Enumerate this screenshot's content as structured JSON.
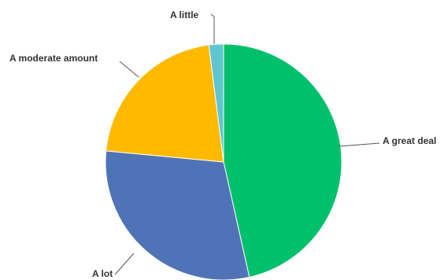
{
  "chart_data": {
    "type": "pie",
    "title": "",
    "slices": [
      {
        "label": "A great deal",
        "value": 46.5,
        "color": "#00C06B"
      },
      {
        "label": "A lot",
        "value": 30.0,
        "color": "#4F73B6"
      },
      {
        "label": "A moderate amount",
        "value": 21.5,
        "color": "#FFBA00"
      },
      {
        "label": "A little",
        "value": 2.0,
        "color": "#5FC6D0"
      }
    ],
    "start": "12 o'clock",
    "direction": "clockwise",
    "legend": "none"
  }
}
